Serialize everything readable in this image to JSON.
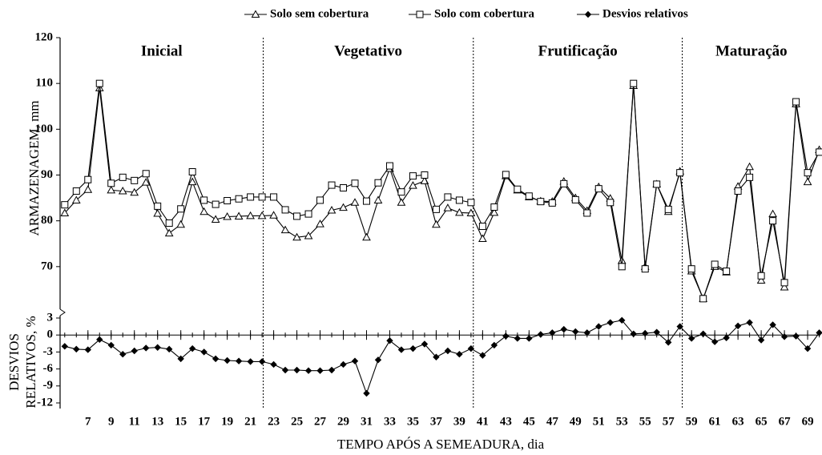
{
  "chart_data": [
    {
      "type": "line",
      "ylabel": "ARMAZENAGEM, mm",
      "x": [
        5,
        6,
        7,
        8,
        9,
        10,
        11,
        12,
        13,
        14,
        15,
        16,
        17,
        18,
        19,
        20,
        21,
        22,
        23,
        24,
        25,
        26,
        27,
        28,
        29,
        30,
        31,
        32,
        33,
        34,
        35,
        36,
        37,
        38,
        39,
        40,
        41,
        42,
        43,
        44,
        45,
        46,
        47,
        48,
        49,
        50,
        51,
        52,
        53,
        54,
        55,
        56,
        57,
        58,
        59,
        60,
        61,
        62,
        63,
        64,
        65,
        66,
        67,
        68,
        69,
        70
      ],
      "series": [
        {
          "name": "Solo sem cobertura",
          "color": "#000000",
          "marker": "triangle",
          "values": [
            81.7,
            84.5,
            86.8,
            109,
            86.7,
            86.5,
            86.2,
            88.4,
            81.6,
            77.3,
            79.2,
            88.5,
            82,
            80.3,
            80.9,
            81,
            81.1,
            81.1,
            81.2,
            78,
            76.4,
            76.7,
            79.3,
            82.3,
            82.9,
            84,
            76.4,
            84.5,
            91.4,
            84,
            87.7,
            88.7,
            79.2,
            82.8,
            81.8,
            81.7,
            76.1,
            81.8,
            89.8,
            86.7,
            85.2,
            84.3,
            84.2,
            88.6,
            85,
            82.2,
            87.4,
            84.9,
            71.3,
            109.5,
            70,
            88,
            82,
            90.8,
            69,
            63,
            70,
            68.8,
            87.5,
            91.8,
            67,
            81.5,
            65.5,
            105.5,
            88.5,
            95.5
          ]
        },
        {
          "name": "Solo com cobertura",
          "color": "#000000",
          "marker": "square",
          "values": [
            83.5,
            86.5,
            89,
            110,
            88.2,
            89.5,
            88.8,
            90.3,
            83.2,
            79.5,
            82.6,
            90.7,
            84.5,
            83.6,
            84.4,
            84.8,
            85.2,
            85.2,
            85.2,
            82.4,
            81,
            81.5,
            84.5,
            87.8,
            87.2,
            88.2,
            84.3,
            88.3,
            92,
            86.3,
            89.8,
            90,
            82.5,
            85.2,
            84.5,
            84,
            78.8,
            83,
            90.1,
            86.9,
            85.4,
            84.2,
            83.9,
            88.1,
            84.6,
            81.7,
            87,
            84,
            70,
            110,
            69.5,
            88,
            82.5,
            90.5,
            69.5,
            63,
            70.5,
            69,
            86.5,
            89.5,
            68,
            80,
            66.5,
            106,
            90.5,
            95
          ]
        }
      ],
      "xlim": [
        4.6,
        70.1
      ],
      "ylim": [
        60,
        120
      ],
      "yticks": [
        70,
        80,
        90,
        100,
        110,
        120
      ],
      "phases": [
        "Inicial",
        "Vegetativo",
        "Frutificação",
        "Maturação"
      ],
      "phase_bounds": [
        22.1,
        40.2,
        58.2
      ],
      "legend": "top"
    },
    {
      "type": "line",
      "ylabel": [
        "DESVIOS",
        "RELATIVOS, %"
      ],
      "xlabel": "TEMPO APÓS A SEMEADURA, dia",
      "series": [
        {
          "name": "Desvios relativos",
          "color": "#000000",
          "marker": "diamond",
          "values": [
            -2,
            -2.5,
            -2.6,
            -0.8,
            -1.8,
            -3.4,
            -2.8,
            -2.3,
            -2.2,
            -2.5,
            -4.2,
            -2.4,
            -3,
            -4.2,
            -4.5,
            -4.6,
            -4.7,
            -4.7,
            -5.2,
            -6.2,
            -6.2,
            -6.3,
            -6.3,
            -6.2,
            -5.2,
            -4.6,
            -10.3,
            -4.4,
            -1,
            -2.6,
            -2.4,
            -1.6,
            -3.9,
            -2.8,
            -3.4,
            -2.4,
            -3.6,
            -1.8,
            -0.2,
            -0.6,
            -0.6,
            0.1,
            0.4,
            1,
            0.6,
            0.4,
            1.5,
            2.2,
            2.6,
            0.2,
            0.3,
            0.5,
            -1.3,
            1.5,
            -0.6,
            0.2,
            -1.2,
            -0.5,
            1.6,
            2.2,
            -0.9,
            1.8,
            -0.3,
            -0.2,
            -2.4,
            0.4
          ]
        }
      ],
      "ylim": [
        -12,
        3
      ],
      "yticks": [
        -12,
        -9,
        -6,
        -3,
        0,
        3
      ],
      "xticks": [
        7,
        9,
        11,
        13,
        15,
        17,
        19,
        21,
        23,
        25,
        27,
        29,
        31,
        33,
        35,
        37,
        39,
        41,
        43,
        45,
        47,
        49,
        51,
        53,
        55,
        57,
        59,
        61,
        63,
        65,
        67,
        69
      ]
    }
  ]
}
